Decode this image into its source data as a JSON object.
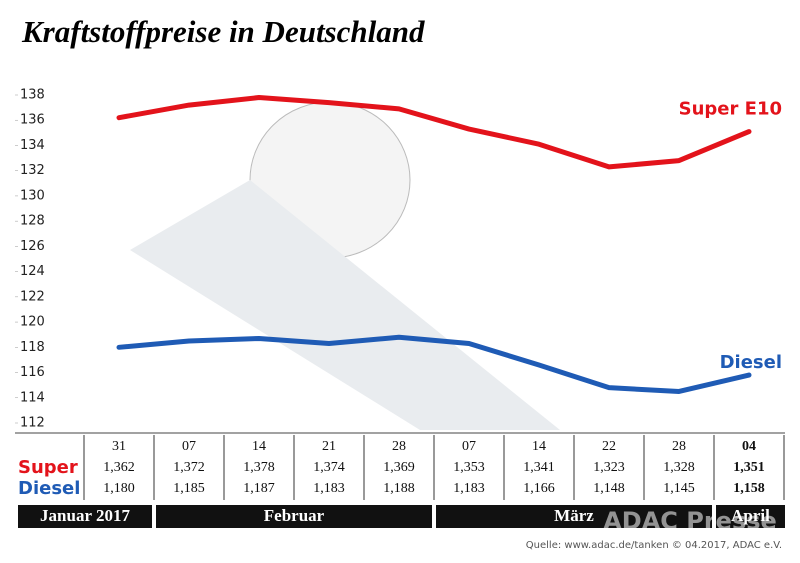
{
  "chart_data": {
    "type": "line",
    "title": "Kraftstoffpreise in Deutschland",
    "categories": [
      "31",
      "07",
      "14",
      "21",
      "28",
      "07",
      "14",
      "22",
      "28",
      "04"
    ],
    "series": [
      {
        "name": "Super E10",
        "color": "#e3131b",
        "values": [
          136.2,
          137.2,
          137.8,
          137.4,
          136.9,
          135.3,
          134.1,
          132.3,
          132.8,
          135.1
        ],
        "table_label": "Super",
        "value_labels": [
          "1,362",
          "1,372",
          "1,378",
          "1,374",
          "1,369",
          "1,353",
          "1,341",
          "1,323",
          "1,328",
          "1,351"
        ]
      },
      {
        "name": "Diesel",
        "color": "#1f5bb5",
        "values": [
          118.0,
          118.5,
          118.7,
          118.3,
          118.8,
          118.3,
          116.6,
          114.8,
          114.5,
          115.8
        ],
        "table_label": "Diesel",
        "value_labels": [
          "1,180",
          "1,185",
          "1,187",
          "1,183",
          "1,188",
          "1,183",
          "1,166",
          "1,148",
          "1,145",
          "1,158"
        ]
      }
    ],
    "ylim": [
      112,
      138
    ],
    "yticks": [
      112,
      114,
      116,
      118,
      120,
      122,
      124,
      126,
      128,
      130,
      132,
      134,
      136,
      138
    ],
    "grid": false,
    "periods": [
      {
        "label": "Januar 2017",
        "from": 0,
        "to": 0
      },
      {
        "label": "Februar",
        "from": 1,
        "to": 4
      },
      {
        "label": "März",
        "from": 5,
        "to": 8
      },
      {
        "label": "April",
        "from": 9,
        "to": 9
      }
    ],
    "source": "Quelle: www.adac.de/tanken  © 04.2017, ADAC e.V.",
    "watermark": "ADAC Presse"
  }
}
